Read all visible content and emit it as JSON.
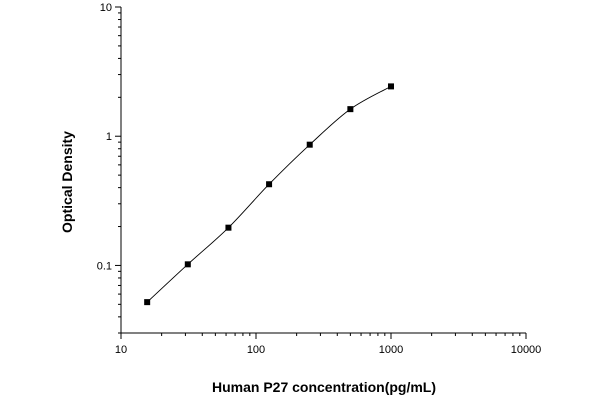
{
  "chart_data": {
    "type": "scatter",
    "title": "",
    "xlabel": "Human P27 concentration(pg/mL)",
    "ylabel": "Optical Density",
    "x_scale": "log",
    "y_scale": "log",
    "xlim": [
      10,
      10000
    ],
    "ylim": [
      0.03,
      10
    ],
    "x_ticks": [
      10,
      100,
      1000,
      10000
    ],
    "x_tick_labels": [
      "10",
      "100",
      "1000",
      "10000"
    ],
    "y_ticks": [
      0.1,
      1,
      10
    ],
    "y_tick_labels": [
      "0.1",
      "1",
      "10"
    ],
    "grid": false,
    "legend": "none",
    "colors": {
      "marker": "#000000",
      "curve": "#000000",
      "axis": "#000000"
    },
    "series": [
      {
        "points": [
          {
            "x": 15.625,
            "y": 0.052
          },
          {
            "x": 31.25,
            "y": 0.102
          },
          {
            "x": 62.5,
            "y": 0.196
          },
          {
            "x": 125,
            "y": 0.425
          },
          {
            "x": 250,
            "y": 0.86
          },
          {
            "x": 500,
            "y": 1.62
          },
          {
            "x": 1000,
            "y": 2.43
          }
        ]
      }
    ]
  }
}
